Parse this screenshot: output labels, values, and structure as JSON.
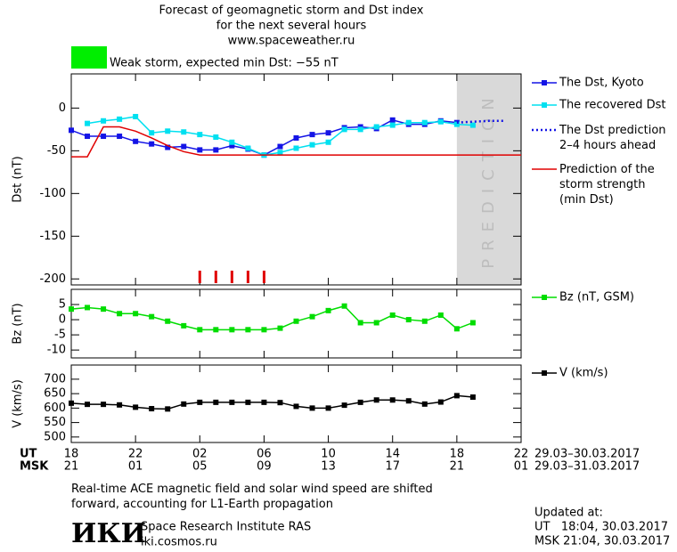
{
  "header": {
    "title_lines": [
      "Forecast of geomagnetic storm and Dst index",
      "for the next several hours",
      "www.spaceweather.ru"
    ],
    "storm_label": "Weak storm, expected min Dst: −55 nT",
    "storm_color": "#00ee00"
  },
  "chart_data": [
    {
      "type": "line",
      "y_label": "Dst (nT)",
      "ylim": [
        -207,
        40
      ],
      "yticks": [
        0,
        -50,
        -100,
        -150,
        -200
      ],
      "prediction_band": {
        "x": [
          24,
          28
        ],
        "label": "PREDICTION",
        "color": "#d9d9d9"
      },
      "storm_marks_x": [
        8,
        9,
        10,
        11,
        12
      ],
      "storm_marks_color": "#e00000",
      "series": [
        {
          "name": "The Dst, Kyoto",
          "color": "#1414e6",
          "markers": true,
          "dotted": false,
          "x": [
            0,
            1,
            2,
            3,
            4,
            5,
            6,
            7,
            8,
            9,
            10,
            11,
            12,
            13,
            14,
            15,
            16,
            17,
            18,
            19,
            20,
            21,
            22,
            23,
            24
          ],
          "values": [
            -26,
            -33,
            -33,
            -33,
            -39,
            -42,
            -46,
            -45,
            -49,
            -49,
            -44,
            -48,
            -55,
            -45,
            -35,
            -31,
            -29,
            -23,
            -22,
            -24,
            -14,
            -19,
            -19,
            -15,
            -17
          ]
        },
        {
          "name": "The recovered Dst",
          "color": "#00e0f0",
          "markers": true,
          "dotted": false,
          "x": [
            1,
            2,
            3,
            4,
            5,
            6,
            7,
            8,
            9,
            10,
            11,
            12,
            13,
            14,
            15,
            16,
            17,
            18,
            19,
            20,
            21,
            22,
            23,
            24,
            25
          ],
          "values": [
            -18,
            -15,
            -13,
            -10,
            -29,
            -27,
            -28,
            -31,
            -34,
            -40,
            -47,
            -55,
            -52,
            -47,
            -43,
            -40,
            -25,
            -25,
            -22,
            -20,
            -17,
            -17,
            -16,
            -19,
            -20
          ]
        },
        {
          "name": "The Dst prediction\n2–4 hours ahead",
          "color": "#1414e6",
          "markers": false,
          "dotted": true,
          "x": [
            24,
            25,
            26,
            27
          ],
          "values": [
            -17,
            -16,
            -15,
            -15
          ]
        },
        {
          "name": "Prediction of the\nstorm strength\n(min Dst)",
          "color": "#e00000",
          "markers": false,
          "dotted": false,
          "x": [
            0,
            1,
            2,
            3,
            4,
            5,
            6,
            7,
            8,
            28
          ],
          "values": [
            -57,
            -57,
            -22,
            -22,
            -27,
            -35,
            -44,
            -51,
            -55,
            -55
          ]
        }
      ]
    },
    {
      "type": "line",
      "y_label": "Bz (nT)",
      "ylim": [
        -12.6,
        10
      ],
      "yticks": [
        5,
        0,
        -5,
        -10
      ],
      "series": [
        {
          "name": "Bz (nT, GSM)",
          "color": "#00dd00",
          "markers": true,
          "dotted": false,
          "x": [
            0,
            1,
            2,
            3,
            4,
            5,
            6,
            7,
            8,
            9,
            10,
            11,
            12,
            13,
            14,
            15,
            16,
            17,
            18,
            19,
            20,
            21,
            22,
            23,
            24,
            25
          ],
          "values": [
            3.5,
            4,
            3.5,
            2,
            2,
            1,
            -0.5,
            -2,
            -3.3,
            -3.3,
            -3.3,
            -3.3,
            -3.3,
            -2.8,
            -0.5,
            1,
            3,
            4.5,
            -1,
            -1,
            1.5,
            0,
            -0.5,
            1.5,
            -3,
            -1
          ]
        }
      ]
    },
    {
      "type": "line",
      "y_label": "V (km/s)",
      "ylim": [
        481,
        749
      ],
      "yticks": [
        700,
        650,
        600,
        550,
        500
      ],
      "xlim": [
        0,
        28
      ],
      "x_row_label": "UT",
      "x2_row_label": "MSK",
      "xticks": [
        {
          "value": 0,
          "label": "18"
        },
        {
          "value": 4,
          "label": "22"
        },
        {
          "value": 8,
          "label": "02"
        },
        {
          "value": 12,
          "label": "06"
        },
        {
          "value": 16,
          "label": "10"
        },
        {
          "value": 20,
          "label": "14"
        },
        {
          "value": 24,
          "label": "18"
        },
        {
          "value": 28,
          "label": "22"
        }
      ],
      "x2ticks": [
        {
          "value": 0,
          "label": "21"
        },
        {
          "value": 4,
          "label": "01"
        },
        {
          "value": 8,
          "label": "05"
        },
        {
          "value": 12,
          "label": "09"
        },
        {
          "value": 16,
          "label": "13"
        },
        {
          "value": 20,
          "label": "17"
        },
        {
          "value": 24,
          "label": "21"
        },
        {
          "value": 28,
          "label": "01"
        }
      ],
      "x_dates": "29.03–30.03.2017",
      "x2_dates": "29.03–31.03.2017",
      "series": [
        {
          "name": "V (km/s)",
          "color": "#000000",
          "markers": true,
          "dotted": false,
          "x": [
            0,
            1,
            2,
            3,
            4,
            5,
            6,
            7,
            8,
            9,
            10,
            11,
            12,
            13,
            14,
            15,
            16,
            17,
            18,
            19,
            20,
            21,
            22,
            23,
            24,
            25
          ],
          "values": [
            617,
            613,
            613,
            611,
            603,
            598,
            597,
            614,
            620,
            620,
            620,
            620,
            620,
            619,
            606,
            600,
            600,
            610,
            620,
            628,
            628,
            625,
            614,
            621,
            643,
            638
          ]
        }
      ]
    }
  ],
  "footer": {
    "note": "Real-time ACE magnetic field and solar wind speed are shifted\nforward, accounting for L1-Earth propagation",
    "logo": "ИКИ",
    "institute": "Space Research Institute RAS",
    "site": "iki.cosmos.ru",
    "updated": "Updated at:",
    "updated_ut": "UT   18:04, 30.03.2017",
    "updated_msk": "MSK 21:04, 30.03.2017"
  }
}
